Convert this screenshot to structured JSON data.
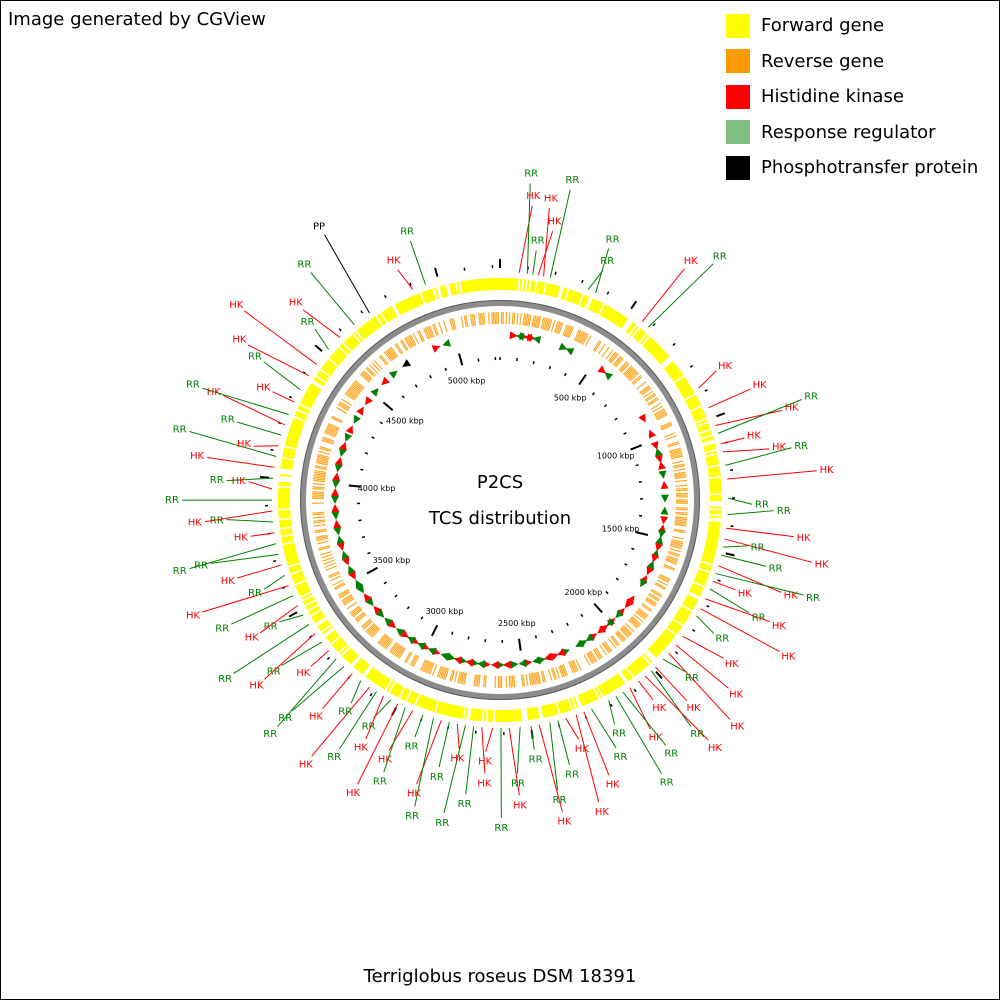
{
  "credit": "Image generated by CGView",
  "legend": [
    {
      "label": "Forward gene",
      "color": "#ffff00"
    },
    {
      "label": "Reverse gene",
      "color": "#ff9900"
    },
    {
      "label": "Histidine kinase",
      "color": "#ff0000"
    },
    {
      "label": "Response regulator",
      "color": "#80c080"
    },
    {
      "label": "Phosphotransfer protein",
      "color": "#000000"
    }
  ],
  "map": {
    "title_line1": "P2CS",
    "title_line2": "TCS distribution",
    "organism": "Terriglobus roseus DSM 18391",
    "genome_size_kbp": 5227,
    "ruler_labels": [
      "500 kbp",
      "1000 kbp",
      "1500 kbp",
      "2000 kbp",
      "2500 kbp",
      "3000 kbp",
      "3500 kbp",
      "4000 kbp",
      "4500 kbp",
      "5000 kbp"
    ],
    "feature_colors": {
      "HK": "#ff0000",
      "RR": "#008000",
      "PP": "#000000"
    },
    "features": [
      {
        "type": "HK",
        "position_kbp": 4900
      },
      {
        "type": "RR",
        "position_kbp": 4950
      },
      {
        "type": "HK",
        "position_kbp": 70
      },
      {
        "type": "RR",
        "position_kbp": 100
      },
      {
        "type": "RR",
        "position_kbp": 120
      },
      {
        "type": "HK",
        "position_kbp": 140
      },
      {
        "type": "HK",
        "position_kbp": 160
      },
      {
        "type": "RR",
        "position_kbp": 185
      },
      {
        "type": "RR",
        "position_kbp": 330
      },
      {
        "type": "RR",
        "position_kbp": 360
      },
      {
        "type": "HK",
        "position_kbp": 560
      },
      {
        "type": "RR",
        "position_kbp": 590
      },
      {
        "type": "HK",
        "position_kbp": 880
      },
      {
        "type": "HK",
        "position_kbp": 960
      },
      {
        "type": "HK",
        "position_kbp": 1030
      },
      {
        "type": "RR",
        "position_kbp": 1060
      },
      {
        "type": "HK",
        "position_kbp": 1100
      },
      {
        "type": "HK",
        "position_kbp": 1130
      },
      {
        "type": "RR",
        "position_kbp": 1180
      },
      {
        "type": "HK",
        "position_kbp": 1230
      },
      {
        "type": "RR",
        "position_kbp": 1300
      },
      {
        "type": "RR",
        "position_kbp": 1360
      },
      {
        "type": "HK",
        "position_kbp": 1410
      },
      {
        "type": "HK",
        "position_kbp": 1450
      },
      {
        "type": "RR",
        "position_kbp": 1480
      },
      {
        "type": "RR",
        "position_kbp": 1510
      },
      {
        "type": "HK",
        "position_kbp": 1550
      },
      {
        "type": "RR",
        "position_kbp": 1580
      },
      {
        "type": "HK",
        "position_kbp": 1610
      },
      {
        "type": "RR",
        "position_kbp": 1640
      },
      {
        "type": "HK",
        "position_kbp": 1680
      },
      {
        "type": "HK",
        "position_kbp": 1720
      },
      {
        "type": "RR",
        "position_kbp": 1750
      },
      {
        "type": "HK",
        "position_kbp": 1840
      },
      {
        "type": "HK",
        "position_kbp": 1880
      },
      {
        "type": "HK",
        "position_kbp": 1920
      },
      {
        "type": "RR",
        "position_kbp": 1950
      },
      {
        "type": "HK",
        "position_kbp": 1990
      },
      {
        "type": "RR",
        "position_kbp": 2010
      },
      {
        "type": "HK",
        "position_kbp": 2040
      },
      {
        "type": "HK",
        "position_kbp": 2070
      },
      {
        "type": "HK",
        "position_kbp": 2110
      },
      {
        "type": "RR",
        "position_kbp": 2140
      },
      {
        "type": "RR",
        "position_kbp": 2170
      },
      {
        "type": "RR",
        "position_kbp": 2200
      },
      {
        "type": "RR",
        "position_kbp": 2270
      },
      {
        "type": "HK",
        "position_kbp": 2300
      },
      {
        "type": "HK",
        "position_kbp": 2330
      },
      {
        "type": "HK",
        "position_kbp": 2370
      },
      {
        "type": "RR",
        "position_kbp": 2400
      },
      {
        "type": "RR",
        "position_kbp": 2430
      },
      {
        "type": "HK",
        "position_kbp": 2470
      },
      {
        "type": "RR",
        "position_kbp": 2500
      },
      {
        "type": "RR",
        "position_kbp": 2540
      },
      {
        "type": "HK",
        "position_kbp": 2580
      },
      {
        "type": "RR",
        "position_kbp": 2610
      },
      {
        "type": "HK",
        "position_kbp": 2640
      },
      {
        "type": "HK",
        "position_kbp": 2680
      },
      {
        "type": "RR",
        "position_kbp": 2710
      },
      {
        "type": "RR",
        "position_kbp": 2740
      },
      {
        "type": "HK",
        "position_kbp": 2770
      },
      {
        "type": "RR",
        "position_kbp": 2800
      },
      {
        "type": "HK",
        "position_kbp": 2830
      },
      {
        "type": "RR",
        "position_kbp": 2860
      },
      {
        "type": "RR",
        "position_kbp": 2900
      },
      {
        "type": "HK",
        "position_kbp": 2940
      },
      {
        "type": "RR",
        "position_kbp": 2970
      },
      {
        "type": "HK",
        "position_kbp": 3000
      },
      {
        "type": "RR",
        "position_kbp": 3030
      },
      {
        "type": "HK",
        "position_kbp": 3060
      },
      {
        "type": "RR",
        "position_kbp": 3090
      },
      {
        "type": "HK",
        "position_kbp": 3120
      },
      {
        "type": "RR",
        "position_kbp": 3160
      },
      {
        "type": "HK",
        "position_kbp": 3200
      },
      {
        "type": "RR",
        "position_kbp": 3240
      },
      {
        "type": "RR",
        "position_kbp": 3280
      },
      {
        "type": "HK",
        "position_kbp": 3320
      },
      {
        "type": "RR",
        "position_kbp": 3360
      },
      {
        "type": "HK",
        "position_kbp": 3400
      },
      {
        "type": "RR",
        "position_kbp": 3440
      },
      {
        "type": "RR",
        "position_kbp": 3480
      },
      {
        "type": "HK",
        "position_kbp": 3520
      },
      {
        "type": "RR",
        "position_kbp": 3560
      },
      {
        "type": "HK",
        "position_kbp": 3600
      },
      {
        "type": "RR",
        "position_kbp": 3640
      },
      {
        "type": "HK",
        "position_kbp": 3680
      },
      {
        "type": "RR",
        "position_kbp": 3720
      },
      {
        "type": "RR",
        "position_kbp": 3760
      },
      {
        "type": "HK",
        "position_kbp": 3800
      },
      {
        "type": "RR",
        "position_kbp": 3840
      },
      {
        "type": "HK",
        "position_kbp": 3880
      },
      {
        "type": "RR",
        "position_kbp": 3920
      },
      {
        "type": "HK",
        "position_kbp": 3960
      },
      {
        "type": "RR",
        "position_kbp": 4000
      },
      {
        "type": "HK",
        "position_kbp": 4040
      },
      {
        "type": "RR",
        "position_kbp": 4080
      },
      {
        "type": "HK",
        "position_kbp": 4120
      },
      {
        "type": "RR",
        "position_kbp": 4160
      },
      {
        "type": "HK",
        "position_kbp": 4200
      },
      {
        "type": "RR",
        "position_kbp": 4240
      },
      {
        "type": "HK",
        "position_kbp": 4290
      },
      {
        "type": "RR",
        "position_kbp": 4340
      },
      {
        "type": "HK",
        "position_kbp": 4400
      },
      {
        "type": "HK",
        "position_kbp": 4450
      },
      {
        "type": "RR",
        "position_kbp": 4520
      },
      {
        "type": "HK",
        "position_kbp": 4580
      },
      {
        "type": "RR",
        "position_kbp": 4650
      },
      {
        "type": "PP",
        "position_kbp": 4720
      }
    ]
  }
}
